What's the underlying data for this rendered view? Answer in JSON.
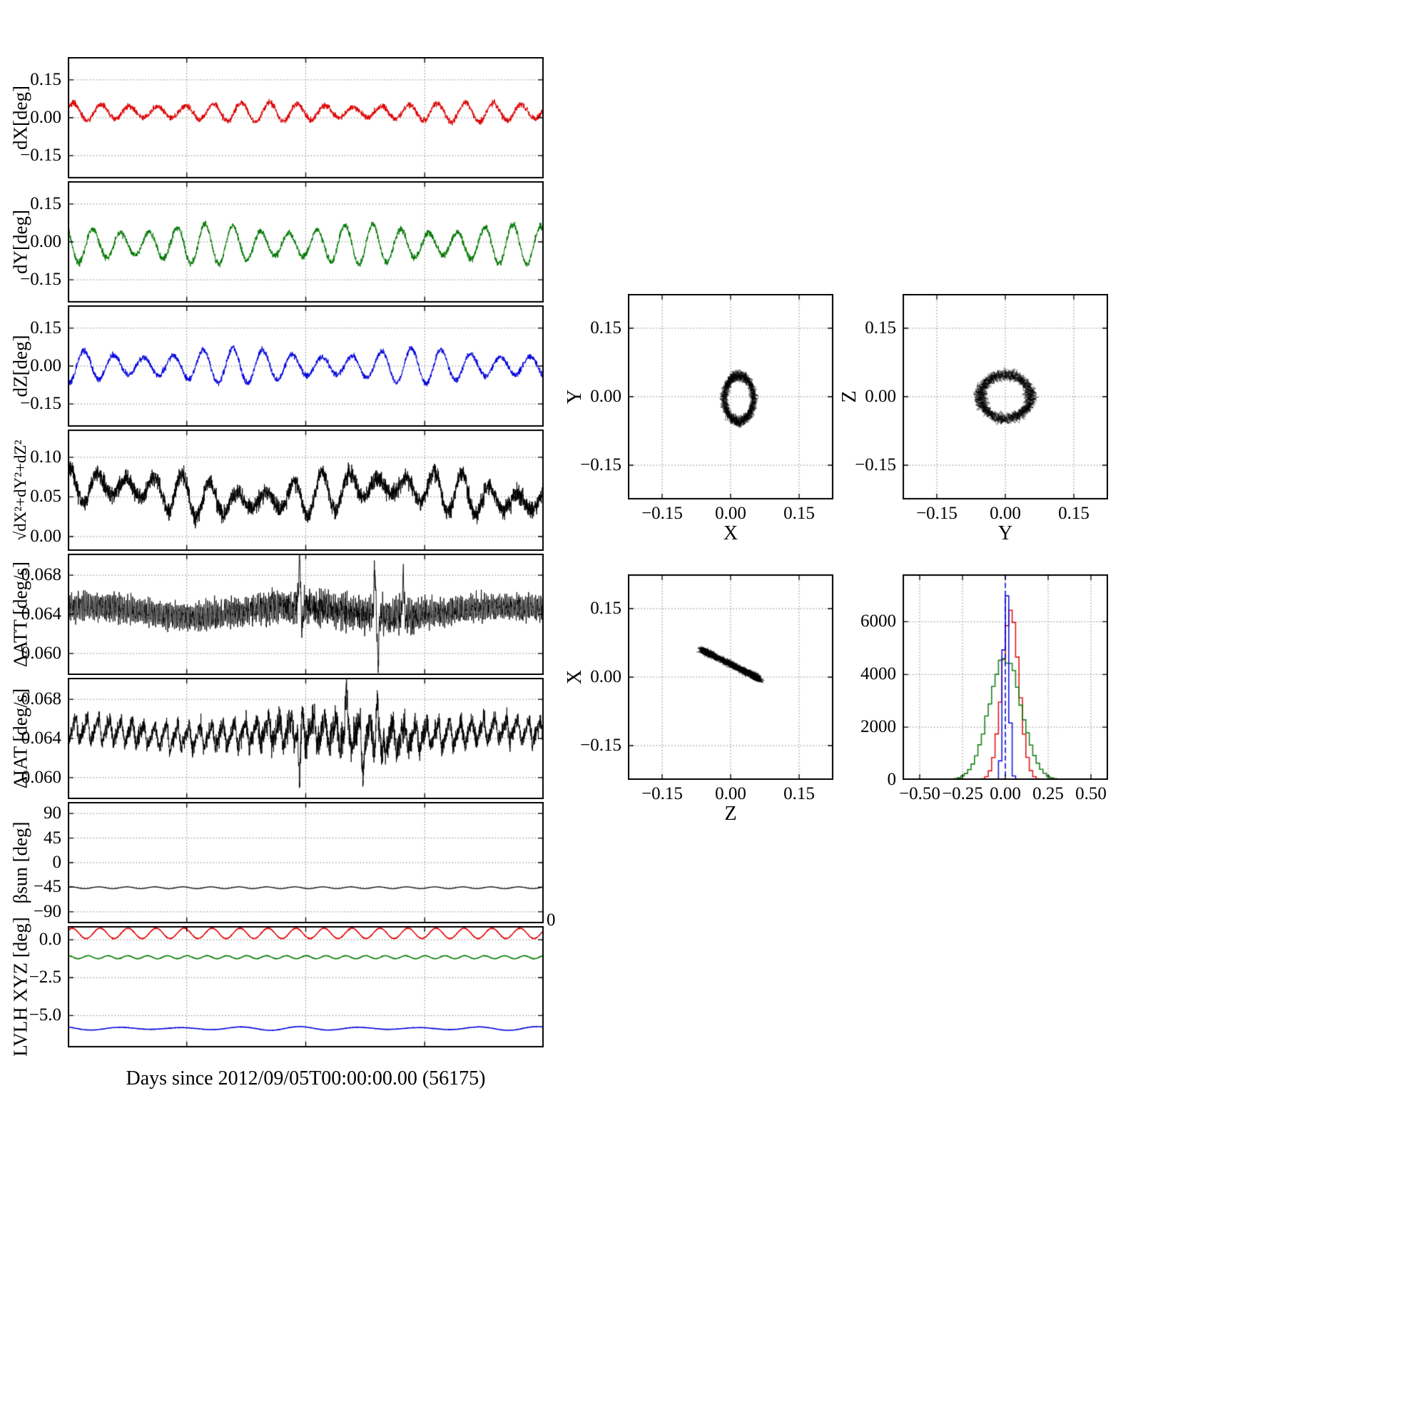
{
  "figure": {
    "background": "#ffffff"
  },
  "chart_data": {
    "type": "multi-panel",
    "xlabel": "Days since 2012/09/05T00:00:00.00 (56175)",
    "stray_tick_label": "0",
    "time_panels": [
      {
        "name": "dX",
        "ylabel": "dX[deg]",
        "ylim": [
          -0.24,
          0.24
        ],
        "yticks": [
          {
            "value": 0.15,
            "label": "0.15"
          },
          {
            "value": 0.0,
            "label": "0.00"
          },
          {
            "value": -0.15,
            "label": "−0.15"
          }
        ],
        "xgrid": [
          0.25,
          0.5,
          0.75
        ],
        "series": [
          {
            "name": "dX",
            "color": "#dd0000",
            "gen": "sine",
            "mean": 0.022,
            "amp": 0.03,
            "periods": 17,
            "phase": 0.3,
            "wobble": 0.3,
            "wobfreq": 2.3,
            "noise": 0.01,
            "points": 2600,
            "lw": 1
          }
        ]
      },
      {
        "name": "dY",
        "ylabel": "dY[deg]",
        "ylim": [
          -0.24,
          0.24
        ],
        "yticks": [
          {
            "value": 0.15,
            "label": "0.15"
          },
          {
            "value": 0.0,
            "label": "0.00"
          },
          {
            "value": -0.15,
            "label": "−0.15"
          }
        ],
        "xgrid": [
          0.25,
          0.5,
          0.75
        ],
        "series": [
          {
            "name": "dY",
            "color": "#007700",
            "gen": "sine",
            "mean": -0.01,
            "amp": 0.062,
            "periods": 17,
            "phase": 2.2,
            "wobble": 0.3,
            "wobfreq": 3.1,
            "noise": 0.011,
            "points": 2600,
            "lw": 1
          }
        ]
      },
      {
        "name": "dZ",
        "ylabel": "dZ[deg]",
        "ylim": [
          -0.24,
          0.24
        ],
        "yticks": [
          {
            "value": 0.15,
            "label": "0.15"
          },
          {
            "value": 0.0,
            "label": "0.00"
          },
          {
            "value": -0.15,
            "label": "−0.15"
          }
        ],
        "xgrid": [
          0.25,
          0.5,
          0.75
        ],
        "series": [
          {
            "name": "dZ",
            "color": "#0000dd",
            "gen": "sine",
            "mean": 0.0,
            "amp": 0.052,
            "periods": 16,
            "phase": 4.4,
            "wobble": 0.35,
            "wobfreq": 2.6,
            "noise": 0.01,
            "points": 2600,
            "lw": 1
          }
        ]
      },
      {
        "name": "magnitude",
        "ylabel": "√dX²+dY²+dZ²",
        "ylim": [
          -0.018,
          0.135
        ],
        "yticks": [
          {
            "value": 0.1,
            "label": "0.10"
          },
          {
            "value": 0.05,
            "label": "0.05"
          },
          {
            "value": 0.0,
            "label": "0.00"
          }
        ],
        "xgrid": [
          0.25,
          0.5,
          0.75
        ],
        "series": [
          {
            "name": "magnitude",
            "color": "#000000",
            "gen": "sine",
            "mean": 0.054,
            "amp": 0.018,
            "periods": 17,
            "phase": 1.1,
            "wobble": 0.5,
            "wobfreq": 3.6,
            "noise": 0.009,
            "drift": 0.01,
            "points": 3000,
            "lw": 1
          }
        ]
      },
      {
        "name": "delta_att",
        "ylabel": "ΔATT [deg/s]",
        "ylim": [
          0.0578,
          0.0702
        ],
        "yticks": [
          {
            "value": 0.068,
            "label": "0.068"
          },
          {
            "value": 0.064,
            "label": "0.064"
          },
          {
            "value": 0.06,
            "label": "0.060"
          }
        ],
        "xgrid": [
          0.25,
          0.5,
          0.75
        ],
        "series": [
          {
            "name": "delta_att",
            "color": "#000000",
            "gen": "dense",
            "mean": 0.0643,
            "slow": 0.0005,
            "amp": 0.001,
            "periods": 280,
            "noise": 0.0006,
            "envamp": 0.9,
            "spikes": [
              {
                "t": 0.487,
                "a": 0.006
              },
              {
                "t": 0.492,
                "a": -0.0028
              },
              {
                "t": 0.645,
                "a": 0.0052
              },
              {
                "t": 0.652,
                "a": -0.0048
              },
              {
                "t": 0.705,
                "a": 0.004
              }
            ],
            "points": 3000,
            "lw": 0.9
          }
        ]
      },
      {
        "name": "delta_iat",
        "ylabel": "ΔIAT [deg/s]",
        "ylim": [
          0.0578,
          0.0702
        ],
        "yticks": [
          {
            "value": 0.068,
            "label": "0.068"
          },
          {
            "value": 0.064,
            "label": "0.064"
          },
          {
            "value": 0.06,
            "label": "0.060"
          }
        ],
        "xgrid": [
          0.25,
          0.5,
          0.75
        ],
        "series": [
          {
            "name": "delta_iat",
            "color": "#000000",
            "gen": "saw",
            "mean": 0.0645,
            "slow": 0.0004,
            "amp": 0.0013,
            "periods": 42,
            "noise": 0.0007,
            "envamp": 1.1,
            "spikes": [
              {
                "t": 0.487,
                "a": -0.0062
              },
              {
                "t": 0.585,
                "a": 0.0045
              },
              {
                "t": 0.62,
                "a": -0.003
              },
              {
                "t": 0.65,
                "a": 0.0048
              },
              {
                "t": 0.66,
                "a": -0.004
              }
            ],
            "points": 3000,
            "lw": 0.9
          }
        ]
      },
      {
        "name": "beta_sun",
        "ylabel": "βsun [deg]",
        "ylim": [
          -111,
          111
        ],
        "yticks": [
          {
            "value": 90,
            "label": "90"
          },
          {
            "value": 45,
            "label": "45"
          },
          {
            "value": 0,
            "label": "0"
          },
          {
            "value": -45,
            "label": "−45"
          },
          {
            "value": -90,
            "label": "−90"
          }
        ],
        "xgrid": [
          0.25,
          0.5,
          0.75
        ],
        "series": [
          {
            "name": "beta_sun",
            "color": "#000000",
            "gen": "sine",
            "mean": -46,
            "amp": 1.7,
            "periods": 17,
            "phase": 0.9,
            "noise": 0.12,
            "points": 2000,
            "lw": 1.2
          }
        ]
      },
      {
        "name": "lvlh",
        "ylabel": "LVLH XYZ [deg]",
        "ylim": [
          -7.1,
          0.9
        ],
        "yticks": [
          {
            "value": 0.0,
            "label": "0.0"
          },
          {
            "value": -2.5,
            "label": "−2.5"
          },
          {
            "value": -5.0,
            "label": "−5.0"
          }
        ],
        "xgrid": [
          0.25,
          0.5,
          0.75
        ],
        "series": [
          {
            "name": "lvlh_x",
            "color": "#dd0000",
            "gen": "sine",
            "mean": 0.42,
            "amp": 0.34,
            "periods": 17,
            "phase": 0.6,
            "noise": 0.018,
            "points": 2200,
            "lw": 1.4
          },
          {
            "name": "lvlh_y",
            "color": "#007700",
            "gen": "sine",
            "mean": -1.15,
            "amp": 0.1,
            "periods": 24,
            "phase": 1.4,
            "noise": 0.012,
            "points": 2200,
            "lw": 1.4
          },
          {
            "name": "lvlh_z",
            "color": "#0000dd",
            "gen": "sine",
            "mean": -5.85,
            "amp": 0.09,
            "periods": 8,
            "phase": 2.2,
            "wobble": 0.4,
            "wobfreq": 2,
            "noise": 0.01,
            "points": 2200,
            "lw": 1.4
          }
        ]
      }
    ],
    "scatter_panels": [
      {
        "name": "y_vs_x",
        "xlabel": "X",
        "ylabel": "Y",
        "xlim": [
          -0.225,
          0.225
        ],
        "ylim": [
          -0.225,
          0.225
        ],
        "xticks": [
          {
            "value": -0.15,
            "label": "−0.15"
          },
          {
            "value": 0.0,
            "label": "0.00"
          },
          {
            "value": 0.15,
            "label": "0.15"
          }
        ],
        "yticks": [
          {
            "value": 0.15,
            "label": "0.15"
          },
          {
            "value": 0.0,
            "label": "0.00"
          },
          {
            "value": -0.15,
            "label": "−0.15"
          }
        ],
        "cluster": {
          "gen": "ring",
          "cx": 0.018,
          "cy": -0.004,
          "rx": 0.032,
          "ry": 0.05,
          "irr": 0.4,
          "loops": 16,
          "n": 2600
        }
      },
      {
        "name": "z_vs_y",
        "xlabel": "Y",
        "ylabel": "Z",
        "xlim": [
          -0.225,
          0.225
        ],
        "ylim": [
          -0.225,
          0.225
        ],
        "xticks": [
          {
            "value": -0.15,
            "label": "−0.15"
          },
          {
            "value": 0.0,
            "label": "0.00"
          },
          {
            "value": 0.15,
            "label": "0.15"
          }
        ],
        "yticks": [
          {
            "value": 0.15,
            "label": "0.15"
          },
          {
            "value": 0.0,
            "label": "0.00"
          },
          {
            "value": -0.15,
            "label": "−0.15"
          }
        ],
        "cluster": {
          "gen": "ring",
          "cx": 0.0,
          "cy": 0.0,
          "rx": 0.055,
          "ry": 0.048,
          "irr": 0.42,
          "loops": 16,
          "n": 2600
        }
      },
      {
        "name": "x_vs_z",
        "xlabel": "Z",
        "ylabel": "X",
        "xlim": [
          -0.225,
          0.225
        ],
        "ylim": [
          -0.225,
          0.225
        ],
        "xticks": [
          {
            "value": -0.15,
            "label": "−0.15"
          },
          {
            "value": 0.0,
            "label": "0.00"
          },
          {
            "value": 0.15,
            "label": "0.15"
          }
        ],
        "yticks": [
          {
            "value": 0.15,
            "label": "0.15"
          },
          {
            "value": 0.0,
            "label": "0.00"
          },
          {
            "value": -0.15,
            "label": "−0.15"
          }
        ],
        "cluster": {
          "gen": "diag",
          "x0": 0.028,
          "slope": -0.5,
          "zamp": 0.058,
          "noise": 0.007,
          "loops": 16,
          "n": 2600
        }
      }
    ],
    "histogram": {
      "name": "residual_histogram",
      "xlim": [
        -0.6,
        0.6
      ],
      "ylim": [
        0,
        7800
      ],
      "bin_width": 0.02,
      "xticks": [
        {
          "value": -0.5,
          "label": "−0.50"
        },
        {
          "value": -0.25,
          "label": "−0.25"
        },
        {
          "value": 0.0,
          "label": "0.00"
        },
        {
          "value": 0.25,
          "label": "0.25"
        },
        {
          "value": 0.5,
          "label": "0.50"
        }
      ],
      "yticks": [
        {
          "value": 0,
          "label": "0"
        },
        {
          "value": 2000,
          "label": "2000"
        },
        {
          "value": 4000,
          "label": "4000"
        },
        {
          "value": 6000,
          "label": "6000"
        }
      ],
      "series": [
        {
          "name": "dX",
          "color": "#dd0000",
          "mu": 0.03,
          "sigma": 0.05,
          "peak": 6300
        },
        {
          "name": "dY",
          "color": "#007700",
          "mu": 0.0,
          "sigma": 0.095,
          "peak": 4600
        },
        {
          "name": "dZ",
          "color": "#0000dd",
          "mu": 0.005,
          "sigma": 0.016,
          "peak": 7600
        }
      ],
      "vline": {
        "x": 0,
        "color": "#0000dd",
        "style": "dashed"
      }
    }
  }
}
